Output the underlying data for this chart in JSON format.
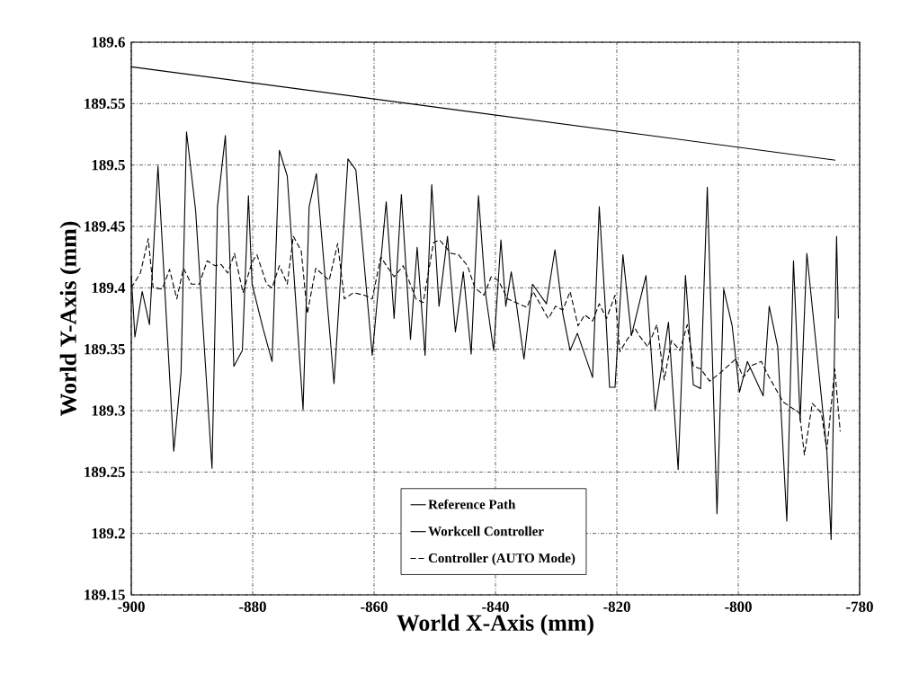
{
  "chart_data": {
    "type": "line",
    "xlabel": "World X-Axis (mm)",
    "ylabel": "World Y-Axis (mm)",
    "xlim": [
      -900,
      -780
    ],
    "xticks": [
      -900,
      -880,
      -860,
      -840,
      -820,
      -800,
      -780
    ],
    "ylim": [
      189.15,
      189.6
    ],
    "yticks": [
      189.15,
      189.2,
      189.25,
      189.3,
      189.35,
      189.4,
      189.45,
      189.5,
      189.55,
      189.6
    ],
    "grid": true,
    "legend": "bottom",
    "series": [
      {
        "name": "Reference Path",
        "color": "#000000",
        "line_style": "solid",
        "x": [
          -900,
          -784
        ],
        "values": [
          189.58,
          189.504
        ]
      },
      {
        "name": "Workcell Controller",
        "color": "#000000",
        "line_style": "solid",
        "x": [
          -900,
          -899.4,
          -898.2,
          -897.0,
          -895.6,
          -893.0,
          -891.8,
          -890.9,
          -889.4,
          -886.7,
          -885.8,
          -884.5,
          -883.1,
          -881.7,
          -880.7,
          -880.1,
          -878.3,
          -876.8,
          -875.6,
          -874.3,
          -871.7,
          -870.7,
          -869.5,
          -866.6,
          -864.3,
          -863.0,
          -860.3,
          -858.0,
          -856.7,
          -855.5,
          -854.0,
          -852.9,
          -851.6,
          -850.5,
          -849.3,
          -847.9,
          -846.6,
          -845.3,
          -844.0,
          -842.8,
          -841.6,
          -840.3,
          -839.1,
          -838.3,
          -837.4,
          -836.5,
          -835.3,
          -833.9,
          -831.6,
          -830.2,
          -828.9,
          -827.7,
          -826.5,
          -824.0,
          -822.9,
          -821.8,
          -821.2,
          -820.3,
          -819.0,
          -817.6,
          -815.2,
          -813.7,
          -811.5,
          -809.9,
          -808.7,
          -807.4,
          -806.2,
          -805.1,
          -803.5,
          -802.4,
          -801.0,
          -799.8,
          -798.5,
          -795.9,
          -794.9,
          -793.5,
          -792.0,
          -790.9,
          -789.8,
          -788.7,
          -785.4,
          -784.7,
          -783.8,
          -783.5
        ],
        "values": [
          189.41,
          189.36,
          189.397,
          189.37,
          189.499,
          189.267,
          189.331,
          189.527,
          189.463,
          189.253,
          189.466,
          189.524,
          189.336,
          189.349,
          189.475,
          189.403,
          189.367,
          189.34,
          189.512,
          189.491,
          189.301,
          189.466,
          189.493,
          189.322,
          189.505,
          189.496,
          189.345,
          189.47,
          189.375,
          189.476,
          189.358,
          189.433,
          189.345,
          189.484,
          189.385,
          189.442,
          189.364,
          189.413,
          189.346,
          189.475,
          189.394,
          189.349,
          189.439,
          189.385,
          189.413,
          189.385,
          189.342,
          189.403,
          189.387,
          189.431,
          189.379,
          189.349,
          189.363,
          189.327,
          189.466,
          189.376,
          189.319,
          189.319,
          189.427,
          189.361,
          189.41,
          189.3,
          189.372,
          189.252,
          189.41,
          189.321,
          189.318,
          189.482,
          189.216,
          189.399,
          189.369,
          189.315,
          189.34,
          189.312,
          189.385,
          189.352,
          189.21,
          189.422,
          189.292,
          189.428,
          189.267,
          189.195,
          189.442,
          189.375
        ]
      },
      {
        "name": "Controller (AUTO Mode)",
        "color": "#000000",
        "line_style": "dashed",
        "x": [
          -900,
          -898.5,
          -897.2,
          -896.4,
          -894.9,
          -893.7,
          -892.5,
          -891.4,
          -890.1,
          -888.8,
          -887.5,
          -886.2,
          -885.2,
          -884.1,
          -883.0,
          -881.6,
          -880.1,
          -879.3,
          -877.7,
          -876.8,
          -875.6,
          -874.3,
          -873.3,
          -872.0,
          -871.0,
          -869.6,
          -867.4,
          -866.0,
          -864.9,
          -863.4,
          -861.6,
          -860.3,
          -858.9,
          -856.7,
          -855.2,
          -853.1,
          -851.9,
          -850.2,
          -849.2,
          -847.3,
          -846.1,
          -844.6,
          -843.4,
          -841.9,
          -840.7,
          -839.5,
          -838.0,
          -836.2,
          -834.8,
          -833.8,
          -831.3,
          -830.1,
          -828.9,
          -827.7,
          -826.4,
          -825.3,
          -824.0,
          -822.9,
          -821.7,
          -820.3,
          -819.5,
          -818.3,
          -817.0,
          -816.3,
          -814.9,
          -813.4,
          -812.2,
          -811.0,
          -809.6,
          -808.4,
          -807.4,
          -806.2,
          -804.7,
          -802.9,
          -800.4,
          -799.2,
          -797.7,
          -796.2,
          -795.0,
          -792.6,
          -791.4,
          -789.9,
          -789.1,
          -787.8,
          -786.3,
          -785.4,
          -784.1,
          -783.2
        ],
        "values": [
          189.4,
          189.412,
          189.44,
          189.4,
          189.399,
          189.415,
          189.391,
          189.416,
          189.403,
          189.403,
          189.422,
          189.418,
          189.419,
          189.412,
          189.428,
          189.396,
          189.421,
          189.427,
          189.403,
          189.4,
          189.418,
          189.403,
          189.442,
          189.43,
          189.379,
          189.416,
          189.406,
          189.436,
          189.391,
          189.396,
          189.394,
          189.391,
          189.425,
          189.409,
          189.418,
          189.391,
          189.388,
          189.437,
          189.439,
          189.428,
          189.427,
          189.418,
          189.4,
          189.394,
          189.409,
          189.406,
          189.391,
          189.387,
          189.384,
          189.397,
          189.375,
          189.385,
          189.382,
          189.397,
          189.369,
          189.378,
          189.373,
          189.387,
          189.375,
          189.394,
          189.348,
          189.358,
          189.367,
          189.361,
          189.352,
          189.37,
          189.325,
          189.357,
          189.349,
          189.37,
          189.336,
          189.334,
          189.324,
          189.331,
          189.342,
          189.327,
          189.337,
          189.34,
          189.328,
          189.307,
          189.303,
          189.298,
          189.264,
          189.306,
          189.298,
          189.268,
          189.334,
          189.283
        ]
      }
    ]
  }
}
